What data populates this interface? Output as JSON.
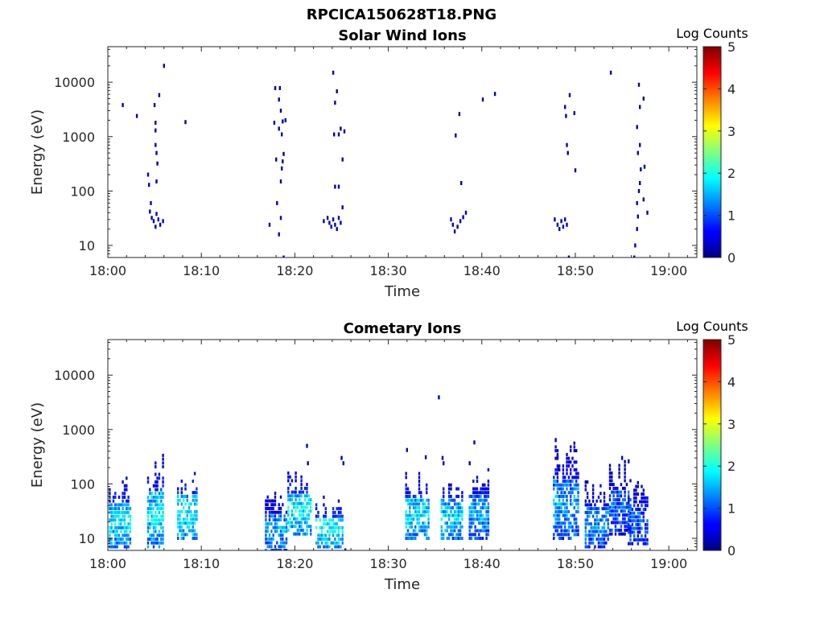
{
  "figure_title": "RPCICA150628T18.PNG",
  "colors": {
    "colormap": "jet",
    "low": "#000080",
    "high": "#800000",
    "axis": "#262626"
  },
  "chart_data": [
    {
      "type": "heatmap",
      "title": "Solar Wind Ions",
      "xlabel": "Time",
      "ylabel": "Energy (eV)",
      "xlim": [
        "18:00",
        "19:03"
      ],
      "x_ticks": [
        "18:00",
        "18:10",
        "18:20",
        "18:30",
        "18:40",
        "18:50",
        "19:00"
      ],
      "y_scale": "log",
      "ylim": [
        6,
        45000
      ],
      "y_ticks": [
        "10",
        "100",
        "1000",
        "10000"
      ],
      "colorbar_label": "Log Counts",
      "colorbar_ticks": [
        "0",
        "1",
        "2",
        "3",
        "4",
        "5"
      ],
      "clim": [
        0,
        5
      ],
      "grid": false,
      "points": [
        {
          "t": 1.5,
          "e": 3800,
          "c": 0.2
        },
        {
          "t": 3.0,
          "e": 2400,
          "c": 0.2
        },
        {
          "t": 4.2,
          "e": 200,
          "c": 0.3
        },
        {
          "t": 4.3,
          "e": 130,
          "c": 0.3
        },
        {
          "t": 4.5,
          "e": 60,
          "c": 0.3
        },
        {
          "t": 4.4,
          "e": 42,
          "c": 0.3
        },
        {
          "t": 4.6,
          "e": 32,
          "c": 0.3
        },
        {
          "t": 4.8,
          "e": 28,
          "c": 0.3
        },
        {
          "t": 5.0,
          "e": 22,
          "c": 0.3
        },
        {
          "t": 5.1,
          "e": 38,
          "c": 0.3
        },
        {
          "t": 5.3,
          "e": 30,
          "c": 0.3
        },
        {
          "t": 5.5,
          "e": 24,
          "c": 0.3
        },
        {
          "t": 5.8,
          "e": 28,
          "c": 0.3
        },
        {
          "t": 4.9,
          "e": 3800,
          "c": 0.2
        },
        {
          "t": 5.0,
          "e": 1800,
          "c": 0.2
        },
        {
          "t": 5.0,
          "e": 1300,
          "c": 0.2
        },
        {
          "t": 5.0,
          "e": 700,
          "c": 0.2
        },
        {
          "t": 5.1,
          "e": 500,
          "c": 0.2
        },
        {
          "t": 5.2,
          "e": 320,
          "c": 0.2
        },
        {
          "t": 5.1,
          "e": 150,
          "c": 0.2
        },
        {
          "t": 5.4,
          "e": 5800,
          "c": 0.2
        },
        {
          "t": 5.9,
          "e": 20000,
          "c": 0.2
        },
        {
          "t": 8.2,
          "e": 1850,
          "c": 0.2
        },
        {
          "t": 17.2,
          "e": 24,
          "c": 0.3
        },
        {
          "t": 17.7,
          "e": 1800,
          "c": 0.2
        },
        {
          "t": 17.8,
          "e": 7800,
          "c": 0.2
        },
        {
          "t": 17.9,
          "e": 380,
          "c": 0.2
        },
        {
          "t": 18.0,
          "e": 60,
          "c": 0.2
        },
        {
          "t": 18.2,
          "e": 16,
          "c": 0.3
        },
        {
          "t": 18.4,
          "e": 32,
          "c": 0.3
        },
        {
          "t": 18.3,
          "e": 7800,
          "c": 0.2
        },
        {
          "t": 18.2,
          "e": 4800,
          "c": 0.2
        },
        {
          "t": 18.4,
          "e": 3000,
          "c": 0.2
        },
        {
          "t": 18.2,
          "e": 1400,
          "c": 0.2
        },
        {
          "t": 18.5,
          "e": 1100,
          "c": 0.2
        },
        {
          "t": 18.6,
          "e": 1900,
          "c": 0.2
        },
        {
          "t": 18.7,
          "e": 480,
          "c": 0.2
        },
        {
          "t": 18.6,
          "e": 350,
          "c": 0.2
        },
        {
          "t": 18.5,
          "e": 260,
          "c": 0.2
        },
        {
          "t": 18.4,
          "e": 150,
          "c": 0.2
        },
        {
          "t": 18.9,
          "e": 2000,
          "c": 0.2
        },
        {
          "t": 18.7,
          "e": 6,
          "c": 0.2
        },
        {
          "t": 23.0,
          "e": 28,
          "c": 0.3
        },
        {
          "t": 23.4,
          "e": 32,
          "c": 0.3
        },
        {
          "t": 23.6,
          "e": 26,
          "c": 0.3
        },
        {
          "t": 23.8,
          "e": 22,
          "c": 0.4
        },
        {
          "t": 24.0,
          "e": 30,
          "c": 0.3
        },
        {
          "t": 24.2,
          "e": 24,
          "c": 0.3
        },
        {
          "t": 24.4,
          "e": 20,
          "c": 0.4
        },
        {
          "t": 24.6,
          "e": 32,
          "c": 0.3
        },
        {
          "t": 24.8,
          "e": 26,
          "c": 0.3
        },
        {
          "t": 25.0,
          "e": 50,
          "c": 0.2
        },
        {
          "t": 24.0,
          "e": 15000,
          "c": 0.2
        },
        {
          "t": 24.2,
          "e": 4200,
          "c": 0.2
        },
        {
          "t": 24.4,
          "e": 6800,
          "c": 0.2
        },
        {
          "t": 24.1,
          "e": 1100,
          "c": 0.2
        },
        {
          "t": 24.6,
          "e": 1100,
          "c": 0.2
        },
        {
          "t": 24.8,
          "e": 1400,
          "c": 0.2
        },
        {
          "t": 25.2,
          "e": 1250,
          "c": 0.2
        },
        {
          "t": 25.0,
          "e": 380,
          "c": 0.2
        },
        {
          "t": 24.2,
          "e": 120,
          "c": 0.2
        },
        {
          "t": 24.6,
          "e": 120,
          "c": 0.2
        },
        {
          "t": 36.6,
          "e": 30,
          "c": 0.3
        },
        {
          "t": 36.8,
          "e": 24,
          "c": 0.3
        },
        {
          "t": 37.0,
          "e": 18,
          "c": 0.3
        },
        {
          "t": 37.3,
          "e": 22,
          "c": 0.3
        },
        {
          "t": 37.6,
          "e": 28,
          "c": 0.3
        },
        {
          "t": 37.9,
          "e": 33,
          "c": 0.3
        },
        {
          "t": 38.2,
          "e": 40,
          "c": 0.3
        },
        {
          "t": 37.1,
          "e": 1050,
          "c": 0.2
        },
        {
          "t": 37.5,
          "e": 2600,
          "c": 0.2
        },
        {
          "t": 37.7,
          "e": 140,
          "c": 0.2
        },
        {
          "t": 40.0,
          "e": 4800,
          "c": 0.2
        },
        {
          "t": 41.3,
          "e": 6100,
          "c": 0.2
        },
        {
          "t": 47.7,
          "e": 30,
          "c": 0.3
        },
        {
          "t": 48.0,
          "e": 24,
          "c": 0.3
        },
        {
          "t": 48.2,
          "e": 20,
          "c": 0.4
        },
        {
          "t": 48.4,
          "e": 28,
          "c": 0.3
        },
        {
          "t": 48.6,
          "e": 22,
          "c": 0.4
        },
        {
          "t": 48.8,
          "e": 30,
          "c": 0.3
        },
        {
          "t": 49.0,
          "e": 24,
          "c": 0.3
        },
        {
          "t": 48.8,
          "e": 3500,
          "c": 0.2
        },
        {
          "t": 48.9,
          "e": 2400,
          "c": 0.2
        },
        {
          "t": 49.0,
          "e": 700,
          "c": 0.2
        },
        {
          "t": 49.1,
          "e": 500,
          "c": 0.2
        },
        {
          "t": 49.3,
          "e": 5800,
          "c": 0.2
        },
        {
          "t": 49.8,
          "e": 2700,
          "c": 0.2
        },
        {
          "t": 49.9,
          "e": 240,
          "c": 0.2
        },
        {
          "t": 49.2,
          "e": 6,
          "c": 0.2
        },
        {
          "t": 53.7,
          "e": 15000,
          "c": 0.2
        },
        {
          "t": 56.2,
          "e": 6,
          "c": 0.2
        },
        {
          "t": 56.3,
          "e": 10,
          "c": 0.3
        },
        {
          "t": 56.5,
          "e": 20,
          "c": 0.3
        },
        {
          "t": 56.6,
          "e": 34,
          "c": 0.3
        },
        {
          "t": 56.5,
          "e": 60,
          "c": 0.2
        },
        {
          "t": 56.7,
          "e": 100,
          "c": 0.2
        },
        {
          "t": 56.8,
          "e": 140,
          "c": 0.2
        },
        {
          "t": 56.9,
          "e": 250,
          "c": 0.2
        },
        {
          "t": 56.6,
          "e": 500,
          "c": 0.2
        },
        {
          "t": 56.8,
          "e": 700,
          "c": 0.2
        },
        {
          "t": 56.5,
          "e": 1500,
          "c": 0.2
        },
        {
          "t": 56.8,
          "e": 3500,
          "c": 0.2
        },
        {
          "t": 56.7,
          "e": 9000,
          "c": 0.2
        },
        {
          "t": 57.2,
          "e": 5000,
          "c": 0.2
        },
        {
          "t": 57.3,
          "e": 280,
          "c": 0.2
        },
        {
          "t": 57.2,
          "e": 70,
          "c": 0.2
        },
        {
          "t": 57.6,
          "e": 40,
          "c": 0.3
        }
      ]
    },
    {
      "type": "heatmap",
      "title": "Cometary Ions",
      "xlabel": "Time",
      "ylabel": "Energy (eV)",
      "xlim": [
        "18:00",
        "19:03"
      ],
      "x_ticks": [
        "18:00",
        "18:10",
        "18:20",
        "18:30",
        "18:40",
        "18:50",
        "19:00"
      ],
      "y_scale": "log",
      "ylim": [
        6,
        45000
      ],
      "y_ticks": [
        "10",
        "100",
        "1000",
        "10000"
      ],
      "colorbar_label": "Log Counts",
      "colorbar_ticks": [
        "0",
        "1",
        "2",
        "3",
        "4",
        "5"
      ],
      "clim": [
        0,
        5
      ],
      "grid": false,
      "clusters": [
        {
          "t0": 0.1,
          "t1": 2.2,
          "emin": 7,
          "emax": 150,
          "c": 1.6
        },
        {
          "t0": 4.2,
          "t1": 5.8,
          "emin": 7,
          "emax": 380,
          "c": 1.6
        },
        {
          "t0": 7.4,
          "t1": 9.4,
          "emin": 10,
          "emax": 200,
          "c": 1.7
        },
        {
          "t0": 16.8,
          "t1": 19.0,
          "emin": 6,
          "emax": 80,
          "c": 1.3
        },
        {
          "t0": 19.2,
          "t1": 21.6,
          "emin": 12,
          "emax": 200,
          "c": 1.7
        },
        {
          "t0": 22.2,
          "t1": 25.0,
          "emin": 7,
          "emax": 60,
          "c": 1.8
        },
        {
          "t0": 31.8,
          "t1": 34.2,
          "emin": 10,
          "emax": 180,
          "c": 1.6
        },
        {
          "t0": 35.6,
          "t1": 37.8,
          "emin": 10,
          "emax": 150,
          "c": 1.5
        },
        {
          "t0": 38.6,
          "t1": 40.6,
          "emin": 10,
          "emax": 200,
          "c": 1.3
        },
        {
          "t0": 47.6,
          "t1": 50.2,
          "emin": 10,
          "emax": 650,
          "c": 1.3
        },
        {
          "t0": 51.0,
          "t1": 53.4,
          "emin": 7,
          "emax": 120,
          "c": 1.2
        },
        {
          "t0": 53.6,
          "t1": 55.8,
          "emin": 12,
          "emax": 280,
          "c": 1.0
        },
        {
          "t0": 55.6,
          "t1": 57.6,
          "emin": 8,
          "emax": 150,
          "c": 1.0
        }
      ],
      "points": [
        {
          "t": 21.2,
          "e": 500,
          "c": 0.3
        },
        {
          "t": 21.3,
          "e": 240,
          "c": 0.3
        },
        {
          "t": 24.9,
          "e": 300,
          "c": 0.3
        },
        {
          "t": 25.1,
          "e": 240,
          "c": 0.3
        },
        {
          "t": 31.9,
          "e": 420,
          "c": 0.3
        },
        {
          "t": 33.9,
          "e": 310,
          "c": 0.3
        },
        {
          "t": 35.3,
          "e": 3900,
          "c": 0.3
        },
        {
          "t": 35.7,
          "e": 300,
          "c": 0.3
        },
        {
          "t": 35.8,
          "e": 240,
          "c": 0.3
        },
        {
          "t": 39.1,
          "e": 580,
          "c": 0.3
        },
        {
          "t": 38.6,
          "e": 240,
          "c": 0.3
        },
        {
          "t": 47.8,
          "e": 640,
          "c": 0.3
        },
        {
          "t": 48.0,
          "e": 320,
          "c": 0.3
        },
        {
          "t": 48.1,
          "e": 200,
          "c": 0.3
        },
        {
          "t": 54.9,
          "e": 300,
          "c": 0.3
        },
        {
          "t": 55.6,
          "e": 260,
          "c": 0.3
        },
        {
          "t": 25.3,
          "e": 6,
          "c": 0.3
        }
      ]
    }
  ]
}
